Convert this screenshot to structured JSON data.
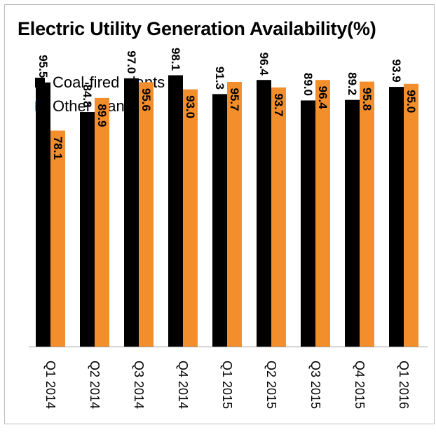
{
  "chart_data": {
    "type": "bar",
    "title": "Electric Utility Generation Availability(%)",
    "categories": [
      "Q1 2014",
      "Q2 2014",
      "Q3 2014",
      "Q4 2014",
      "Q1 2015",
      "Q2 2015",
      "Q3 2015",
      "Q4 2015",
      "Q1 2016"
    ],
    "series": [
      {
        "name": "Coal-fired plants",
        "color": "#000000",
        "values": [
          95.5,
          84.8,
          97.0,
          98.1,
          91.3,
          96.4,
          89.0,
          89.2,
          93.9
        ]
      },
      {
        "name": "Other plants",
        "color": "#f28e2b",
        "values": [
          78.1,
          89.9,
          95.6,
          93.0,
          95.7,
          93.7,
          96.4,
          95.8,
          95.0
        ]
      }
    ],
    "value_labels": true,
    "ylim": [
      0,
      100
    ],
    "grid": false,
    "legend_position": "top-left"
  }
}
